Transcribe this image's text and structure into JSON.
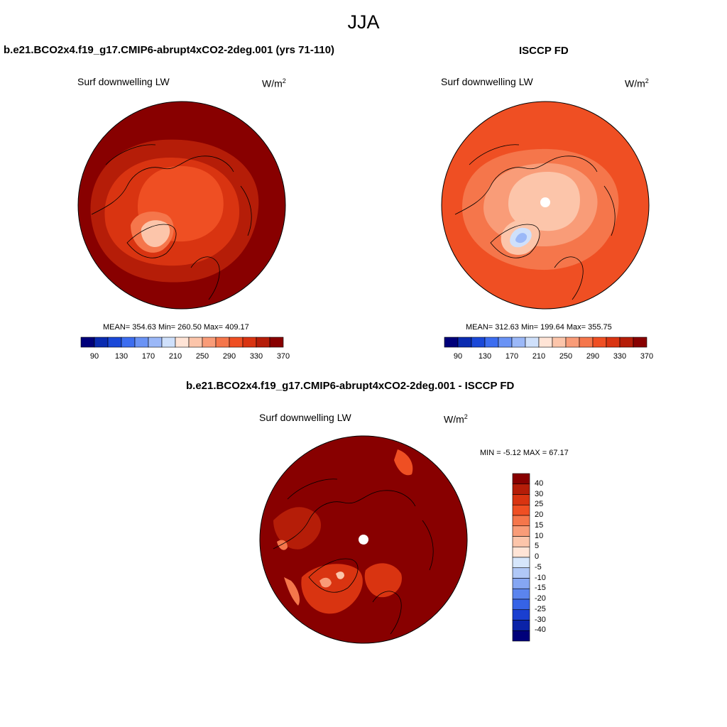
{
  "figure": {
    "title": "JJA"
  },
  "panels": {
    "model": {
      "title": "b.e21.BCO2x4.f19_g17.CMIP6-abrupt4xCO2-2deg.001 (yrs 71-110)",
      "variable": "Surf downwelling LW",
      "units_base": "W/m",
      "units_exp": "2",
      "stats": "MEAN= 354.63  Min= 260.50  Max= 409.17",
      "colorbar_ticks": [
        "90",
        "130",
        "170",
        "210",
        "250",
        "290",
        "330",
        "370"
      ]
    },
    "obs": {
      "title": "ISCCP FD",
      "variable": "Surf downwelling LW",
      "units_base": "W/m",
      "units_exp": "2",
      "stats": "MEAN= 312.63  Min= 199.64  Max= 355.75",
      "colorbar_ticks": [
        "90",
        "130",
        "170",
        "210",
        "250",
        "290",
        "330",
        "370"
      ]
    },
    "diff": {
      "title": "b.e21.BCO2x4.f19_g17.CMIP6-abrupt4xCO2-2deg.001 - ISCCP FD",
      "variable": "Surf downwelling LW",
      "units_base": "W/m",
      "units_exp": "2",
      "stats": "MIN =  -5.12 MAX =  67.17",
      "colorbar_ticks": [
        "40",
        "30",
        "25",
        "20",
        "15",
        "10",
        "5",
        "0",
        "-5",
        "-10",
        "-15",
        "-20",
        "-25",
        "-30",
        "-40"
      ]
    }
  },
  "colors": {
    "abs_scale": [
      "#00007a",
      "#0a2bb0",
      "#1a48d8",
      "#3c6df0",
      "#6a93f5",
      "#9bb8f8",
      "#cfe0fb",
      "#ffe4d6",
      "#fcc5aa",
      "#f99c78",
      "#f5764b",
      "#ef4f23",
      "#d93411",
      "#b51d08",
      "#880000"
    ],
    "diff_scale": [
      "#880000",
      "#b51d08",
      "#d93411",
      "#ef4f23",
      "#f5764b",
      "#f99c78",
      "#fcc5aa",
      "#ffe4d6",
      "#d6e6fb",
      "#b0c8f7",
      "#85a6f3",
      "#5b84ee",
      "#3663e6",
      "#1a3fd0",
      "#0a23a8",
      "#00007a"
    ]
  }
}
